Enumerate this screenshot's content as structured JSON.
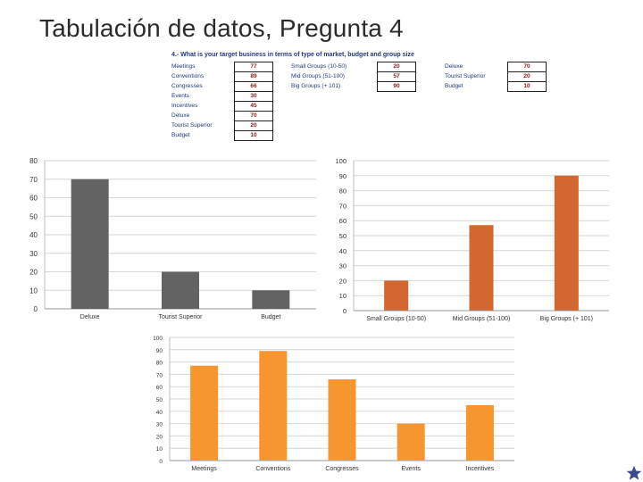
{
  "slide": {
    "title": "Tabulación de datos, Pregunta 4"
  },
  "survey_table": {
    "heading": "4.- What is your target business in terms of type of market, budget and group size",
    "market": [
      {
        "label": "Meetings",
        "value": "77"
      },
      {
        "label": "Conventions",
        "value": "89"
      },
      {
        "label": "Congresses",
        "value": "66"
      },
      {
        "label": "Events",
        "value": "30"
      },
      {
        "label": "Incentives",
        "value": "45"
      },
      {
        "label": "Deluxe",
        "value": "70"
      },
      {
        "label": "Tourist  Superior",
        "value": "20"
      },
      {
        "label": "Budget",
        "value": "10"
      }
    ],
    "group_size": [
      {
        "label": "Small Groups (10-50)",
        "value": "20"
      },
      {
        "label": "Mid Groups (51-100)",
        "value": "57"
      },
      {
        "label": "Big Groups (+ 101)",
        "value": "90"
      }
    ],
    "budget": [
      {
        "label": "Deluxe",
        "value": "70"
      },
      {
        "label": "Tourist  Superior",
        "value": "20"
      },
      {
        "label": "Budget",
        "value": "10"
      }
    ]
  },
  "colors": {
    "gray_bar": "#636363",
    "orange_dark": "#d2672f",
    "orange_light": "#f7962f",
    "star": "#3a4a8c"
  },
  "chart_data": [
    {
      "type": "bar",
      "title": "",
      "categories": [
        "Deluxe",
        "Tourist  Superior",
        "Budget"
      ],
      "values": [
        70,
        20,
        10
      ],
      "ylim": [
        0,
        80
      ],
      "yticks": [
        0,
        10,
        20,
        30,
        40,
        50,
        60,
        70,
        80
      ],
      "grid": true,
      "color": "#636363"
    },
    {
      "type": "bar",
      "title": "",
      "categories": [
        "Small Groups (10-50)",
        "Mid Groups (51-100)",
        "Big Groups (+ 101)"
      ],
      "values": [
        20,
        57,
        90
      ],
      "ylim": [
        0,
        100
      ],
      "yticks": [
        0,
        10,
        20,
        30,
        40,
        50,
        60,
        70,
        80,
        90,
        100
      ],
      "grid": true,
      "color": "#d2672f"
    },
    {
      "type": "bar",
      "title": "",
      "categories": [
        "Meetings",
        "Conventions",
        "Congresses",
        "Events",
        "Incentives"
      ],
      "values": [
        77,
        89,
        66,
        30,
        45
      ],
      "ylim": [
        0,
        100
      ],
      "yticks": [
        0,
        10,
        20,
        30,
        40,
        50,
        60,
        70,
        80,
        90,
        100
      ],
      "grid": true,
      "color": "#f7962f"
    }
  ]
}
